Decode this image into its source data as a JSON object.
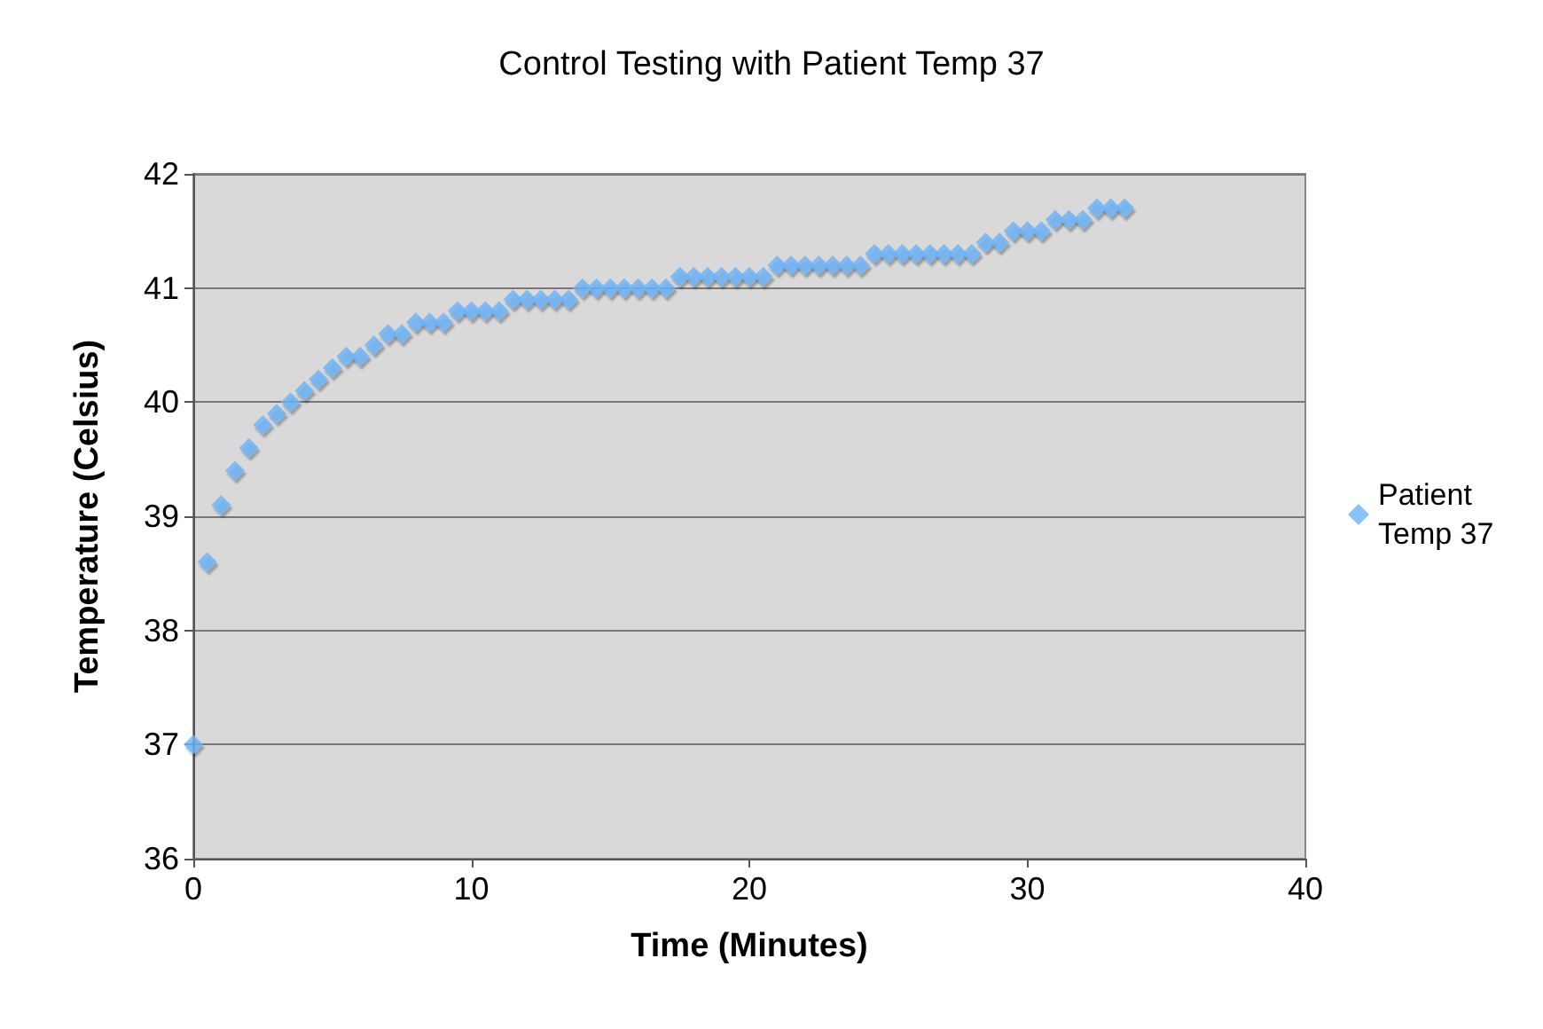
{
  "chart_data": {
    "type": "scatter",
    "title": "Control Testing with Patient Temp 37",
    "xlabel": "Time (Minutes)",
    "ylabel": "Temperature (Celsius)",
    "x": [
      0,
      0.5,
      1,
      1.5,
      2,
      2.5,
      3,
      3.5,
      4,
      4.5,
      5,
      5.5,
      6,
      6.5,
      7,
      7.5,
      8,
      8.5,
      9,
      9.5,
      10,
      10.5,
      11,
      11.5,
      12,
      12.5,
      13,
      13.5,
      14,
      14.5,
      15,
      15.5,
      16,
      16.5,
      17,
      17.5,
      18,
      18.5,
      19,
      19.5,
      20,
      20.5,
      21,
      21.5,
      22,
      22.5,
      23,
      23.5,
      24,
      24.5,
      25,
      25.5,
      26,
      26.5,
      27,
      27.5,
      28,
      28.5,
      29,
      29.5,
      30,
      30.5,
      31,
      31.5,
      32,
      32.5,
      33,
      33.5
    ],
    "series": [
      {
        "name": "Patient Temp 37",
        "color": "#6cb4fa",
        "values": [
          37,
          38.6,
          39.1,
          39.4,
          39.6,
          39.8,
          39.9,
          40.0,
          40.1,
          40.2,
          40.3,
          40.4,
          40.4,
          40.5,
          40.6,
          40.6,
          40.7,
          40.7,
          40.7,
          40.8,
          40.8,
          40.8,
          40.8,
          40.9,
          40.9,
          40.9,
          40.9,
          40.9,
          41.0,
          41.0,
          41.0,
          41.0,
          41.0,
          41.0,
          41.0,
          41.1,
          41.1,
          41.1,
          41.1,
          41.1,
          41.1,
          41.1,
          41.2,
          41.2,
          41.2,
          41.2,
          41.2,
          41.2,
          41.2,
          41.3,
          41.3,
          41.3,
          41.3,
          41.3,
          41.3,
          41.3,
          41.3,
          41.4,
          41.4,
          41.5,
          41.5,
          41.5,
          41.6,
          41.6,
          41.6,
          41.7,
          41.7,
          41.7
        ]
      }
    ],
    "xlim": [
      0,
      40
    ],
    "xticks": [
      0,
      10,
      20,
      30,
      40
    ],
    "ylim": [
      36,
      42
    ],
    "yticks": [
      36,
      37,
      38,
      39,
      40,
      41,
      42
    ],
    "grid": "y",
    "legend": "right",
    "marker": "diamond"
  }
}
